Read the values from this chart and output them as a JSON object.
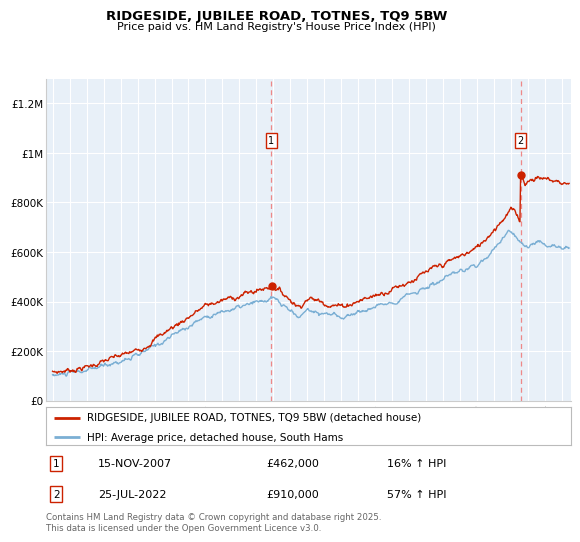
{
  "title": "RIDGESIDE, JUBILEE ROAD, TOTNES, TQ9 5BW",
  "subtitle": "Price paid vs. HM Land Registry's House Price Index (HPI)",
  "legend_line1": "RIDGESIDE, JUBILEE ROAD, TOTNES, TQ9 5BW (detached house)",
  "legend_line2": "HPI: Average price, detached house, South Hams",
  "annotation1_label": "1",
  "annotation1_date": "15-NOV-2007",
  "annotation1_price": "£462,000",
  "annotation1_hpi": "16% ↑ HPI",
  "annotation1_year": 2007.88,
  "annotation1_sale_price": 462000,
  "annotation2_label": "2",
  "annotation2_date": "25-JUL-2022",
  "annotation2_price": "£910,000",
  "annotation2_hpi": "57% ↑ HPI",
  "annotation2_year": 2022.56,
  "annotation2_sale_price": 910000,
  "hpi_color": "#7bafd4",
  "price_color": "#cc2200",
  "vline_color": "#ee8888",
  "grid_color": "#d8e4f0",
  "chart_bg": "#e8f0f8",
  "background_color": "#ffffff",
  "ylim": [
    0,
    1300000
  ],
  "xlim_start": 1994.6,
  "xlim_end": 2025.5,
  "footer": "Contains HM Land Registry data © Crown copyright and database right 2025.\nThis data is licensed under the Open Government Licence v3.0.",
  "yticks": [
    0,
    200000,
    400000,
    600000,
    800000,
    1000000,
    1200000
  ],
  "ytick_labels": [
    "£0",
    "£200K",
    "£400K",
    "£600K",
    "£800K",
    "£1M",
    "£1.2M"
  ],
  "xticks": [
    1995,
    1996,
    1997,
    1998,
    1999,
    2000,
    2001,
    2002,
    2003,
    2004,
    2005,
    2006,
    2007,
    2008,
    2009,
    2010,
    2011,
    2012,
    2013,
    2014,
    2015,
    2016,
    2017,
    2018,
    2019,
    2020,
    2021,
    2022,
    2023,
    2024,
    2025
  ]
}
